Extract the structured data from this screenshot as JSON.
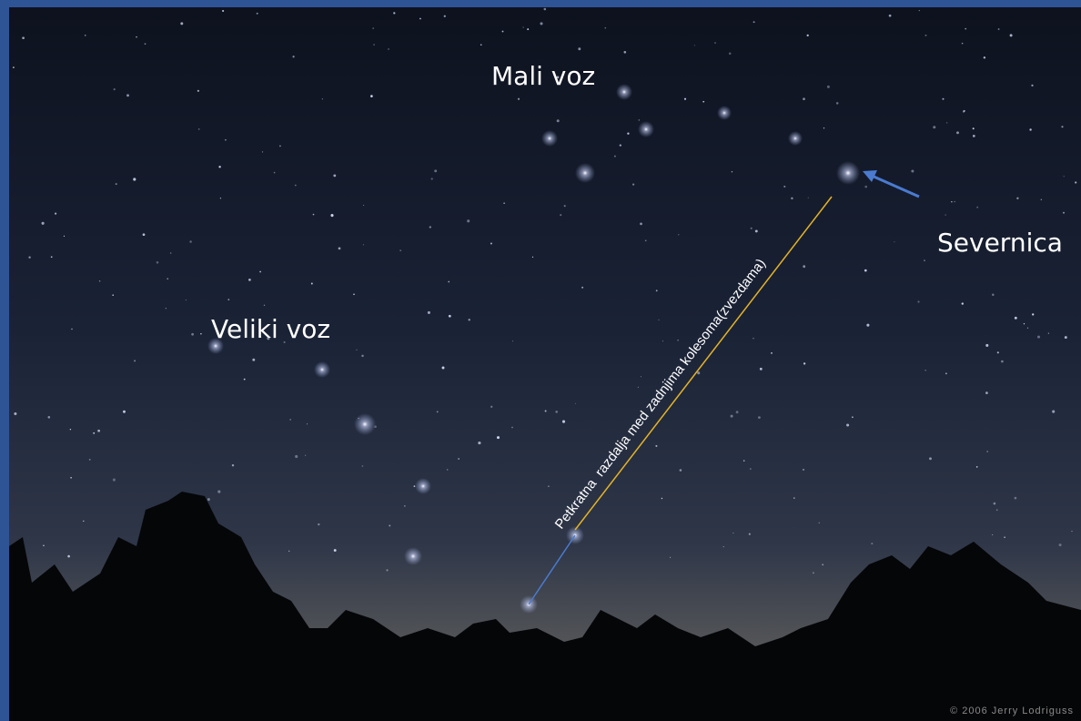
{
  "labels": {
    "little_dipper": "Mali voz",
    "big_dipper": "Veliki voz",
    "polaris": "Severnica",
    "distance_note": "Petkratna  razdalja med zadnjima kolesoma(zvezdama)",
    "credit": "© 2006 Jerry Lodriguss"
  }
}
